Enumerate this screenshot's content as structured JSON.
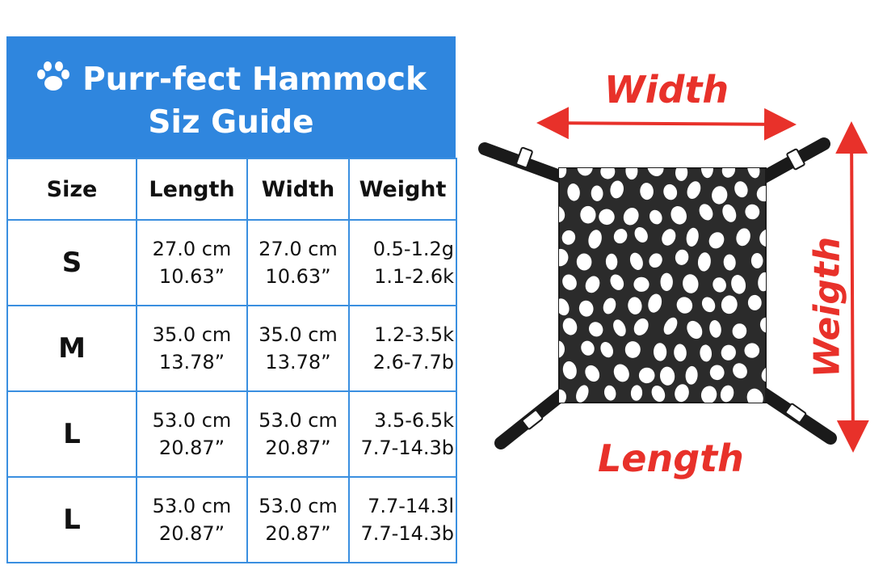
{
  "table": {
    "title_line1": "Purr-fect Hammock",
    "title_line2": "Siz Guide",
    "headers": [
      "Size",
      "Length",
      "Width",
      "Weight"
    ],
    "rows": [
      {
        "size": "S",
        "length_cm": "27.0 cm",
        "length_in": "10.63”",
        "width_cm": "27.0 cm",
        "width_in": "10.63”",
        "weight1": "0.5-1.2g",
        "weight2": "1.1-2.6k"
      },
      {
        "size": "M",
        "length_cm": "35.0 cm",
        "length_in": "13.78”",
        "width_cm": "35.0 cm",
        "width_in": "13.78”",
        "weight1": "1.2-3.5k",
        "weight2": "2.6-7.7b"
      },
      {
        "size": "L",
        "length_cm": "53.0 cm",
        "length_in": "20.87”",
        "width_cm": "53.0 cm",
        "width_in": "20.87”",
        "weight1": "3.5-6.5k",
        "weight2": "7.7-14.3b"
      },
      {
        "size": "L",
        "length_cm": "53.0 cm",
        "length_in": "20.87”",
        "width_cm": "53.0 cm",
        "width_in": "20.87”",
        "weight1": "7.7-14.3l",
        "weight2": "7.7-14.3b"
      }
    ]
  },
  "diagram": {
    "width_label": "Width",
    "length_label": "Length",
    "weight_label": "Weigth"
  },
  "colors": {
    "header_bg": "#2f86de",
    "border": "#3a8fe0",
    "arrow": "#e8312a",
    "fabric": "#2b2b2b"
  },
  "icons": [
    "paw-icon",
    "width-arrow",
    "height-arrow",
    "hammock"
  ]
}
